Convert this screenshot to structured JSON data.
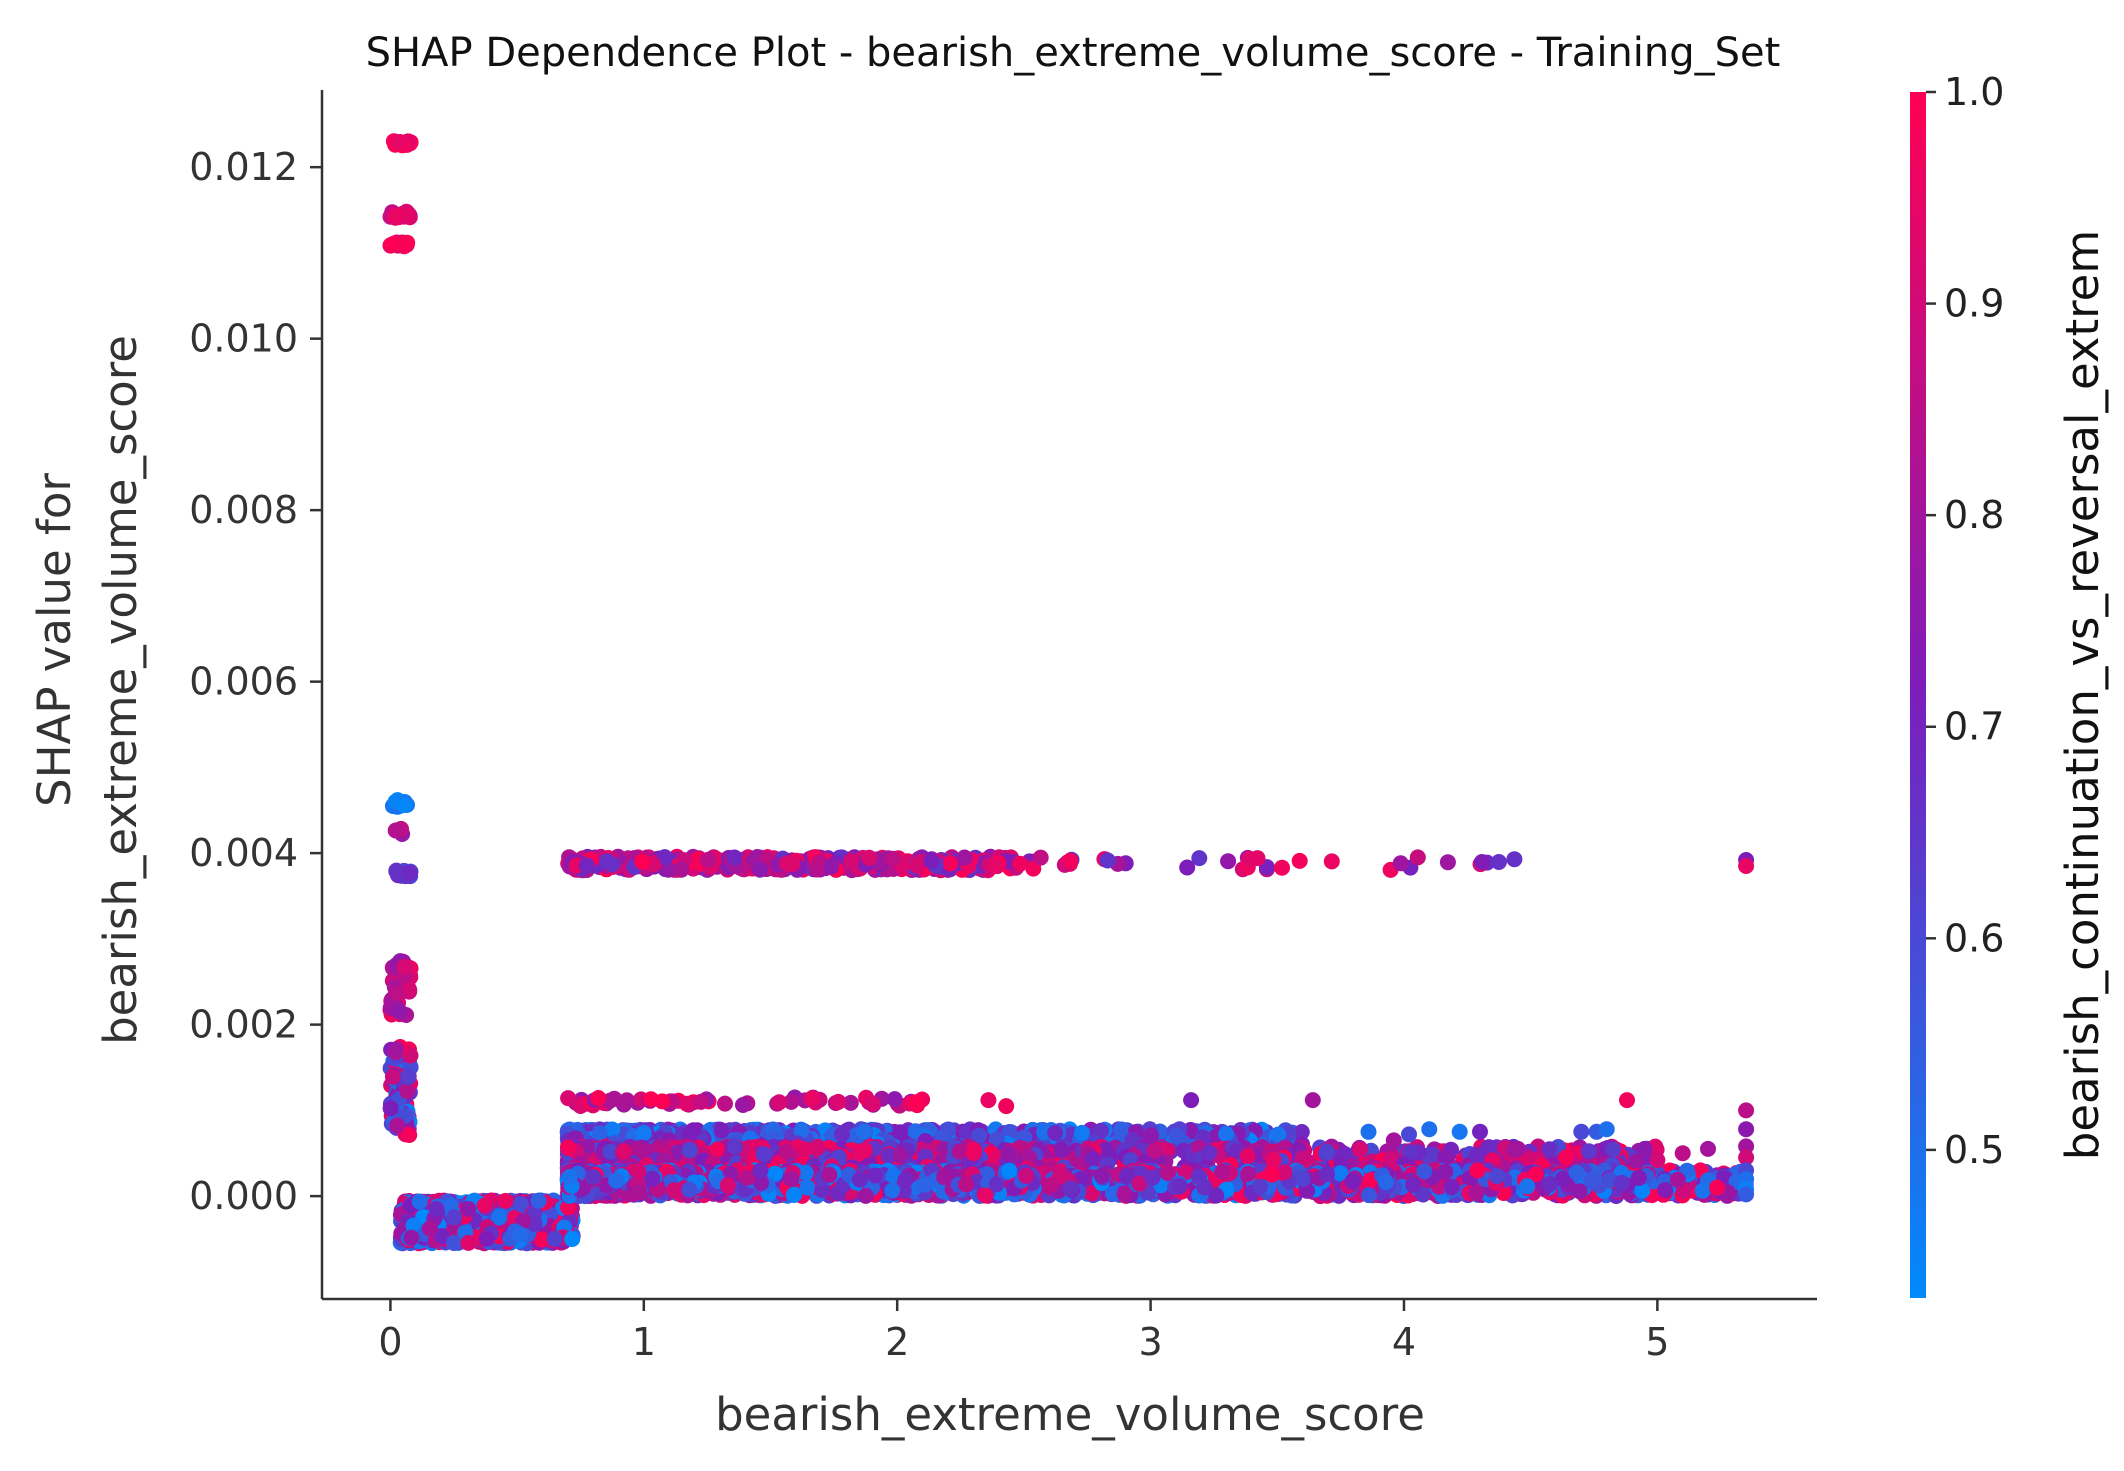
{
  "chart_data": {
    "type": "scatter",
    "title": "SHAP Dependence Plot - bearish_extreme_volume_score - Training_Set",
    "xlabel": "bearish_extreme_volume_score",
    "ylabel_line1": "SHAP value for",
    "ylabel_line2": "bearish_extreme_volume_score",
    "xlim": [
      -0.27,
      5.63
    ],
    "ylim": [
      -0.0012,
      0.0129
    ],
    "x_ticks": [
      0,
      1,
      2,
      3,
      4,
      5
    ],
    "y_ticks": [
      0.0,
      0.002,
      0.004,
      0.006,
      0.008,
      0.01,
      0.012
    ],
    "x_tick_labels": [
      "0",
      "1",
      "2",
      "3",
      "4",
      "5"
    ],
    "y_tick_labels": [
      "0.000",
      "0.002",
      "0.004",
      "0.006",
      "0.008",
      "0.010",
      "0.012"
    ],
    "grid": false,
    "colorbar": {
      "label": "bearish_continuation_vs_reversal_extrem",
      "range": [
        0.43,
        1.0
      ],
      "ticks": [
        0.5,
        0.6,
        0.7,
        0.8,
        0.9,
        1.0
      ],
      "tick_labels": [
        "0.5",
        "0.6",
        "0.7",
        "0.8",
        "0.9",
        "1.0"
      ],
      "colors": {
        "low": "#008afb",
        "mid": "#7c1dbb",
        "high": "#ff0052"
      }
    },
    "clusters": [
      {
        "x": [
          0.0,
          0.08
        ],
        "y": [
          0.01225,
          0.01231
        ],
        "c": [
          0.93,
          1.0
        ],
        "n": 18
      },
      {
        "x": [
          0.0,
          0.08
        ],
        "y": [
          0.0114,
          0.01148
        ],
        "c": [
          0.85,
          0.98
        ],
        "n": 18
      },
      {
        "x": [
          0.0,
          0.08
        ],
        "y": [
          0.01107,
          0.01113
        ],
        "c": [
          0.92,
          1.0
        ],
        "n": 14
      },
      {
        "x": [
          0.0,
          0.08
        ],
        "y": [
          0.00454,
          0.00462
        ],
        "c": [
          0.43,
          0.5
        ],
        "n": 14
      },
      {
        "x": [
          0.0,
          0.06
        ],
        "y": [
          0.00422,
          0.00432
        ],
        "c": [
          0.75,
          0.95
        ],
        "n": 4
      },
      {
        "x": [
          0.0,
          0.08
        ],
        "y": [
          0.00373,
          0.0038
        ],
        "c": [
          0.55,
          0.7
        ],
        "n": 14
      },
      {
        "x": [
          0.0,
          0.08
        ],
        "y": [
          0.0021,
          0.0028
        ],
        "c": [
          0.75,
          1.0
        ],
        "n": 50
      },
      {
        "x": [
          0.0,
          0.08
        ],
        "y": [
          0.0007,
          0.00175
        ],
        "c": [
          0.43,
          1.0
        ],
        "n": 70
      },
      {
        "x": [
          0.04,
          0.72
        ],
        "y": [
          -0.00055,
          -5e-05
        ],
        "c": [
          0.43,
          1.0
        ],
        "n": 1100
      },
      {
        "x": [
          0.7,
          2.45
        ],
        "y": [
          0.0038,
          0.00396
        ],
        "c": [
          0.65,
          1.0
        ],
        "n": 420
      },
      {
        "x": [
          2.45,
          4.5
        ],
        "y": [
          0.0038,
          0.00396
        ],
        "c": [
          0.65,
          1.0
        ],
        "n": 40
      },
      {
        "x": [
          0.7,
          2.1
        ],
        "y": [
          0.00105,
          0.00115
        ],
        "c": [
          0.75,
          1.0
        ],
        "n": 60
      },
      {
        "x": [
          0.7,
          3.6
        ],
        "y": [
          0.0006,
          0.00078
        ],
        "c": [
          0.43,
          0.75
        ],
        "n": 900
      },
      {
        "x": [
          0.7,
          5.0
        ],
        "y": [
          0.0003,
          0.00058
        ],
        "c": [
          0.6,
          1.0
        ],
        "n": 1100
      },
      {
        "x": [
          0.7,
          5.35
        ],
        "y": [
          0.0,
          0.0003
        ],
        "c": [
          0.43,
          1.0
        ],
        "n": 2200
      }
    ],
    "sparse_points": [
      {
        "x": 2.36,
        "y": 0.00112,
        "c": 0.95
      },
      {
        "x": 2.43,
        "y": 0.00105,
        "c": 0.97
      },
      {
        "x": 3.16,
        "y": 0.00112,
        "c": 0.72
      },
      {
        "x": 3.64,
        "y": 0.00112,
        "c": 0.8
      },
      {
        "x": 4.88,
        "y": 0.00112,
        "c": 0.97
      },
      {
        "x": 4.76,
        "y": 0.00075,
        "c": 0.55
      },
      {
        "x": 4.8,
        "y": 0.00078,
        "c": 0.5
      },
      {
        "x": 4.7,
        "y": 0.00075,
        "c": 0.6
      },
      {
        "x": 4.64,
        "y": 0.00045,
        "c": 0.98
      },
      {
        "x": 5.35,
        "y": 0.00392,
        "c": 0.72
      },
      {
        "x": 5.35,
        "y": 0.00385,
        "c": 0.95
      },
      {
        "x": 5.35,
        "y": 0.001,
        "c": 0.85
      },
      {
        "x": 5.35,
        "y": 0.00078,
        "c": 0.75
      },
      {
        "x": 5.35,
        "y": 0.00058,
        "c": 0.8
      },
      {
        "x": 5.35,
        "y": 0.00045,
        "c": 0.9
      },
      {
        "x": 5.35,
        "y": 0.0003,
        "c": 0.6
      },
      {
        "x": 5.35,
        "y": 0.0002,
        "c": 0.5
      },
      {
        "x": 5.35,
        "y": 8e-05,
        "c": 0.45
      },
      {
        "x": 5.35,
        "y": 2e-05,
        "c": 0.55
      },
      {
        "x": 4.1,
        "y": 0.00078,
        "c": 0.5
      },
      {
        "x": 4.22,
        "y": 0.00075,
        "c": 0.48
      },
      {
        "x": 3.86,
        "y": 0.00075,
        "c": 0.5
      },
      {
        "x": 4.02,
        "y": 0.00072,
        "c": 0.6
      },
      {
        "x": 4.45,
        "y": 0.00055,
        "c": 0.8
      },
      {
        "x": 4.95,
        "y": 0.00055,
        "c": 0.75
      },
      {
        "x": 5.1,
        "y": 0.0005,
        "c": 0.85
      },
      {
        "x": 5.2,
        "y": 0.00055,
        "c": 0.8
      },
      {
        "x": 5.0,
        "y": 0.00042,
        "c": 0.9
      },
      {
        "x": 4.3,
        "y": 0.00075,
        "c": 0.7
      },
      {
        "x": 3.96,
        "y": 0.00065,
        "c": 0.8
      }
    ]
  }
}
